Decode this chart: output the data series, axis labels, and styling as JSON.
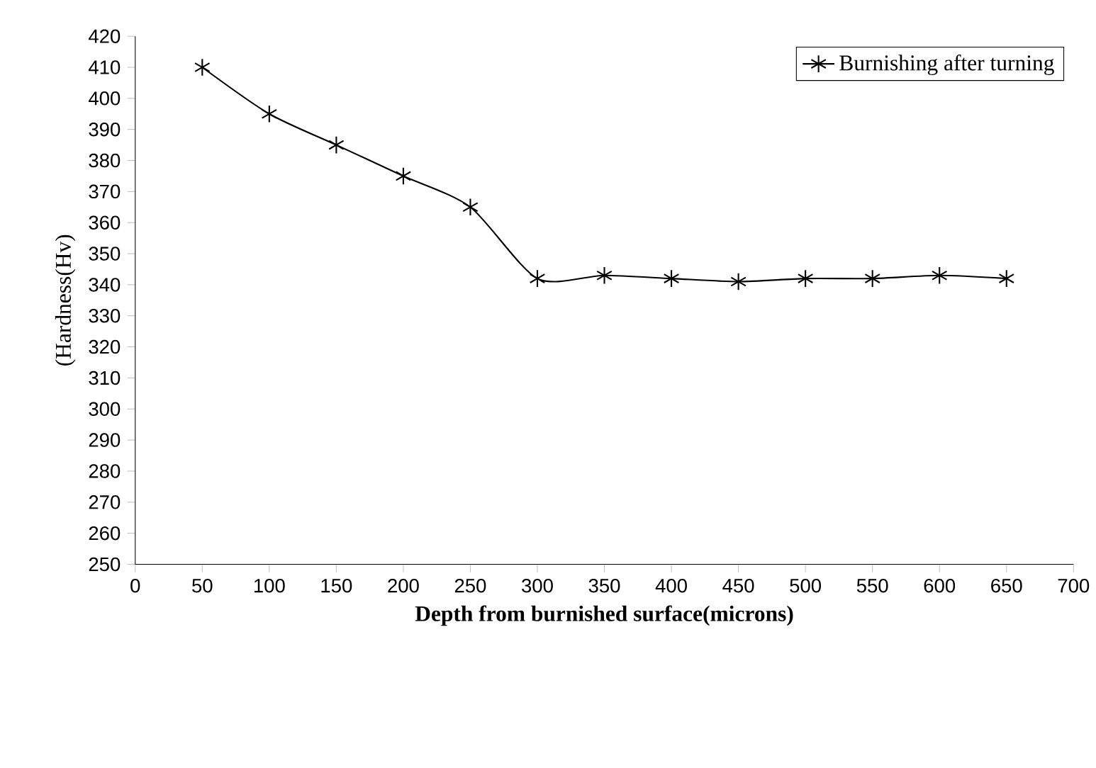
{
  "chart_data": {
    "type": "line",
    "xlabel": "Depth from burnished surface(microns)",
    "ylabel": "(Hardness(Hv)",
    "x": [
      50,
      100,
      150,
      200,
      250,
      300,
      350,
      400,
      450,
      500,
      550,
      600,
      650
    ],
    "series": [
      {
        "name": "Burnishing after turning",
        "color": "#000000",
        "values": [
          410,
          395,
          385,
          375,
          365,
          342,
          343,
          342,
          341,
          342,
          342,
          343,
          342
        ]
      }
    ],
    "xlim": [
      0,
      700
    ],
    "xticks": [
      0,
      50,
      100,
      150,
      200,
      250,
      300,
      350,
      400,
      450,
      500,
      550,
      600,
      650,
      700
    ],
    "ylim": [
      250,
      420
    ],
    "yticks": [
      250,
      260,
      270,
      280,
      290,
      300,
      310,
      320,
      330,
      340,
      350,
      360,
      370,
      380,
      390,
      400,
      410,
      420
    ],
    "marker": "cross",
    "line_style": "solid",
    "legend": "top right",
    "grid": false
  }
}
